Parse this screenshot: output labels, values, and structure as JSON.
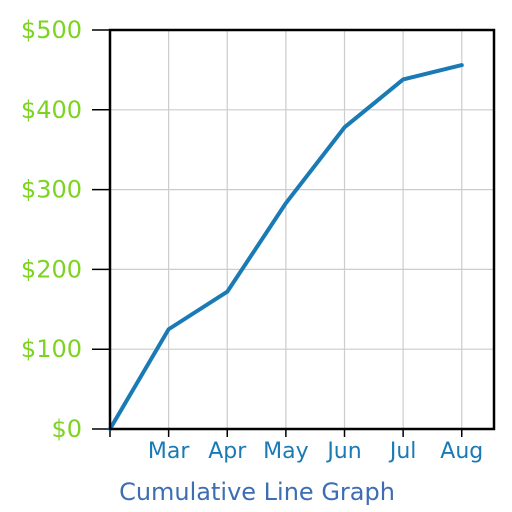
{
  "chart_data": {
    "type": "line",
    "title": "",
    "xlabel": "Cumulative Line Graph",
    "ylabel": "",
    "categories": [
      "",
      "Mar",
      "Apr",
      "May",
      "Jun",
      "Jul",
      "Aug"
    ],
    "y_tick_labels": [
      "$0",
      "$100",
      "$200",
      "$300",
      "$400",
      "$500"
    ],
    "y_ticks": [
      0,
      100,
      200,
      300,
      400,
      500
    ],
    "ylim": [
      0,
      500
    ],
    "grid": true,
    "legend": "none",
    "series": [
      {
        "values": [
          0,
          125,
          172,
          283,
          378,
          438,
          456
        ],
        "color": "#1a7ab5"
      }
    ],
    "colors": {
      "line": "#1a7ab5",
      "ytick": "#7dd321",
      "xtick": "#1a7ab5",
      "xlabel": "#3d6db3",
      "grid": "#cccccc",
      "frame": "#000000"
    }
  }
}
